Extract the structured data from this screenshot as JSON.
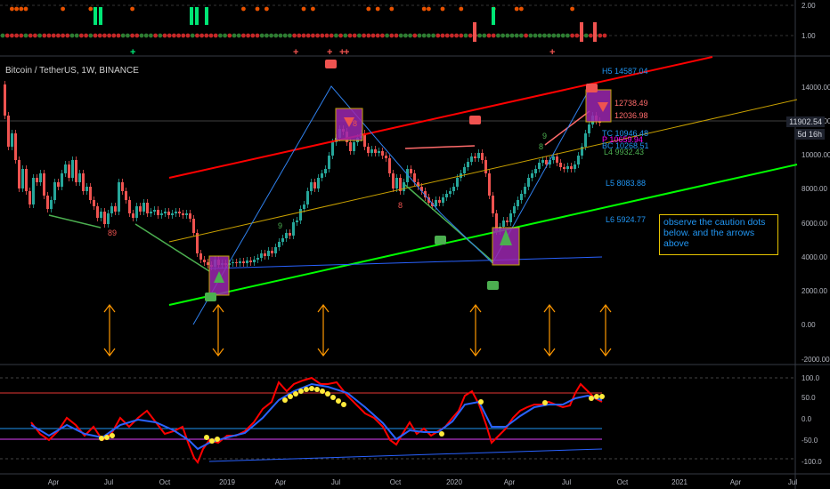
{
  "symbol_title": "Bitcoin / TetherUS, 1W, BINANCE",
  "note_text": "observe the caution dots below. and the arrows above",
  "current_price": "11902.54",
  "countdown": "5d 16h",
  "levels": {
    "h5": "H5 14587.04",
    "h4": "12738.49",
    "h3": "12036.98",
    "tc": "TC 10946.48",
    "p": "P 10659.94",
    "bc": "BC 10268.51",
    "l4": "L4 9932.43",
    "l5": "L5 8083.88",
    "l6": "L6 5924.77"
  },
  "colors": {
    "background": "#000000",
    "up_candle": "#26a69a",
    "down_candle": "#ef5350",
    "trendline_red": "#ff0000",
    "trendline_green": "#00ff00",
    "trendline_yellow": "#c8a000",
    "arrow_orange": "#ff9800",
    "marker_purple": "#9c27b0"
  },
  "top_axis": [
    "2.00",
    "1.00"
  ],
  "price_axis": [
    "14000.00",
    "12000.00",
    "10000.00",
    "8000.00",
    "6000.00",
    "4000.00",
    "2000.00",
    "0.00",
    "-2000.00"
  ],
  "osc_axis": [
    "100.0",
    "50.0",
    "0.0",
    "-50.0",
    "-100.0"
  ],
  "time_axis": [
    "Apr",
    "Jul",
    "Oct",
    "2019",
    "Apr",
    "Jul",
    "Oct",
    "2020",
    "Apr",
    "Jul",
    "Oct",
    "2021",
    "Apr",
    "Jul"
  ],
  "pivot_labels": [
    "89",
    "8",
    "9",
    "8",
    "9",
    "8"
  ]
}
